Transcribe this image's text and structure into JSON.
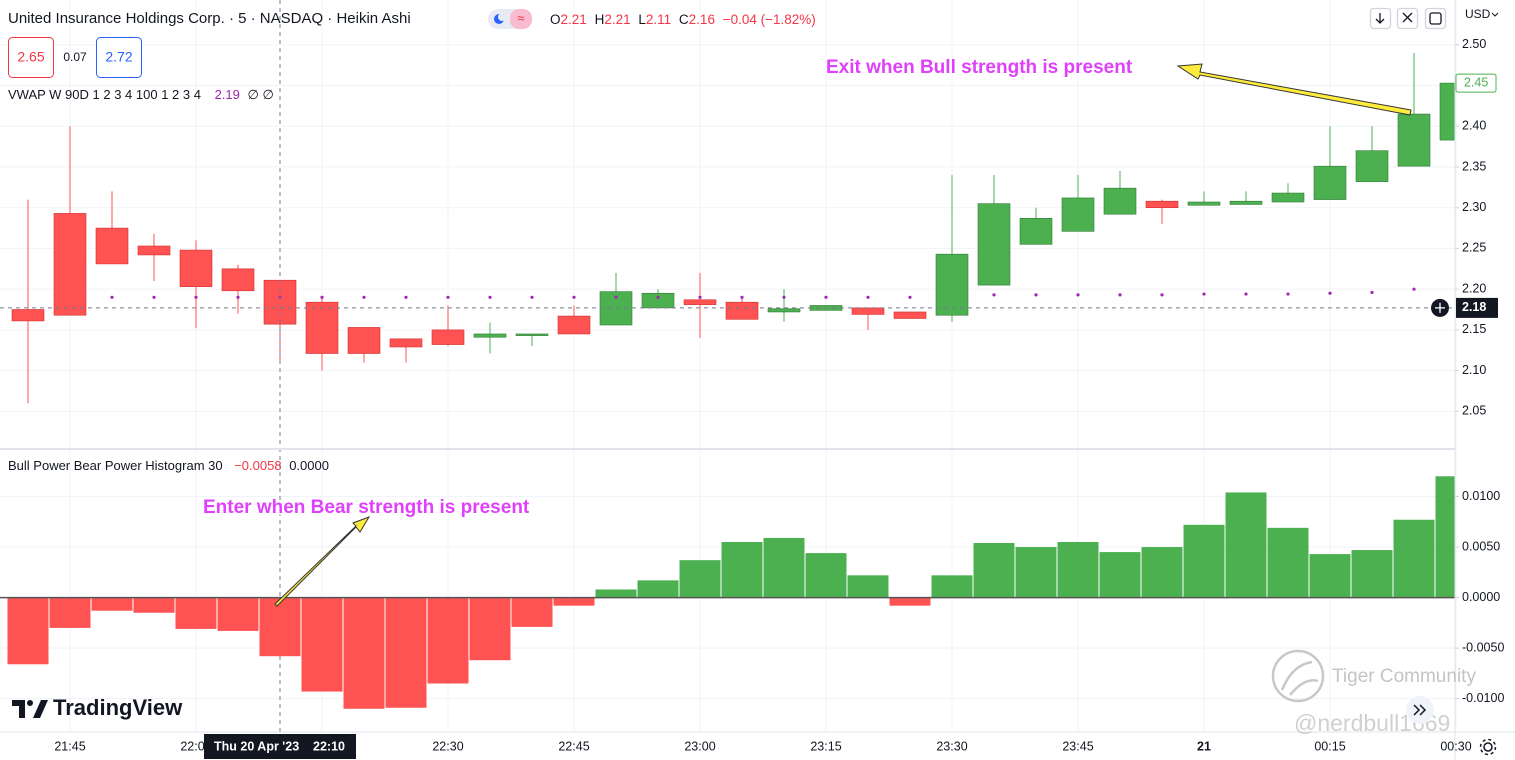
{
  "header": {
    "title": "United Insurance Holdings Corp. · 5 · NASDAQ · Heikin Ashi",
    "ohlc": [
      [
        "O",
        "2.21"
      ],
      [
        "H",
        "2.21"
      ],
      [
        "L",
        "2.11"
      ],
      [
        "C",
        "2.16"
      ]
    ],
    "change": "−0.04 (−1.82%)",
    "currency": "USD"
  },
  "buttons": [
    "2.65",
    "0.07",
    "2.72"
  ],
  "branding": {
    "logo": "TradingView",
    "watermark": "Tiger Community",
    "handle": "@nerdbull1669"
  },
  "chart_data": [
    {
      "type": "candlestick",
      "categories": [
        null,
        "21:45",
        null,
        null,
        "22:00",
        null,
        null,
        null,
        null,
        null,
        "22:30",
        null,
        null,
        "22:45",
        null,
        null,
        "23:00",
        null,
        null,
        "23:15",
        null,
        null,
        "23:30",
        null,
        null,
        "23:45",
        null,
        null,
        "21",
        null,
        null,
        "00:15",
        null,
        null,
        "00:30"
      ],
      "open": [
        2.175,
        2.293,
        2.275,
        2.253,
        2.248,
        2.225,
        2.211,
        2.184,
        2.153,
        2.139,
        2.15,
        2.141,
        2.143,
        2.167,
        2.156,
        2.177,
        2.187,
        2.184,
        2.172,
        2.174,
        2.177,
        2.172,
        2.168,
        2.205,
        2.255,
        2.271,
        2.292,
        2.308,
        2.303,
        2.304,
        2.307,
        2.31,
        2.332,
        2.351,
        2.383
      ],
      "high": [
        2.31,
        2.4,
        2.32,
        2.268,
        2.26,
        2.23,
        2.211,
        2.19,
        2.153,
        2.139,
        2.18,
        2.159,
        2.145,
        2.18,
        2.22,
        2.2,
        2.22,
        2.19,
        2.2,
        2.18,
        2.177,
        2.172,
        2.34,
        2.34,
        2.3,
        2.34,
        2.345,
        2.31,
        2.32,
        2.32,
        2.33,
        2.4,
        2.4,
        2.49,
        2.46
      ],
      "low": [
        2.06,
        2.168,
        2.231,
        2.21,
        2.152,
        2.17,
        2.11,
        2.1,
        2.11,
        2.11,
        2.13,
        2.121,
        2.13,
        2.145,
        2.156,
        2.177,
        2.14,
        2.163,
        2.16,
        2.174,
        2.15,
        2.164,
        2.16,
        2.205,
        2.255,
        2.271,
        2.292,
        2.28,
        2.303,
        2.304,
        2.307,
        2.31,
        2.332,
        2.351,
        2.383
      ],
      "close": [
        2.161,
        2.168,
        2.231,
        2.242,
        2.203,
        2.198,
        2.157,
        2.121,
        2.121,
        2.129,
        2.132,
        2.145,
        2.145,
        2.145,
        2.197,
        2.195,
        2.181,
        2.163,
        2.176,
        2.18,
        2.169,
        2.164,
        2.243,
        2.305,
        2.287,
        2.312,
        2.324,
        2.3,
        2.307,
        2.308,
        2.318,
        2.351,
        2.37,
        2.415,
        2.453
      ],
      "up_color": "#4caf50",
      "down_color": "#ff5252",
      "overlay": {
        "name": "VWAP W 90D 1 2 3 4 100 1 2 3 4",
        "legend_value": "2.19",
        "legend_extra": "∅ ∅",
        "color": "#9c27b0",
        "values": [
          null,
          null,
          2.19,
          2.19,
          2.19,
          2.19,
          2.19,
          2.19,
          2.19,
          2.19,
          2.19,
          2.19,
          2.19,
          2.19,
          2.19,
          2.19,
          2.19,
          2.19,
          2.19,
          2.19,
          2.19,
          2.19,
          null,
          2.193,
          2.193,
          2.193,
          2.193,
          2.193,
          2.194,
          2.194,
          2.194,
          2.195,
          2.196,
          2.2,
          null
        ]
      },
      "ylim": [
        2.005,
        2.555
      ],
      "yticks": [
        2.05,
        {
          "value": 2.1,
          "label": "2.10"
        },
        2.15,
        {
          "value": 2.2,
          "label": "2.20"
        },
        2.25,
        {
          "value": 2.3,
          "label": "2.30"
        },
        2.35,
        {
          "value": 2.4,
          "label": "2.40"
        },
        2.45,
        {
          "value": 2.5,
          "label": "2.50"
        }
      ],
      "grid": true,
      "last_price": {
        "value": 2.453,
        "label": "2.45"
      },
      "crosshair": {
        "value": 2.177,
        "label": "2.18",
        "date_label": "Thu 20 Apr '23",
        "time_label": "22:10"
      },
      "annotation": "Exit when Bull strength is present"
    },
    {
      "type": "bar",
      "title": "Bull Power Bear Power Histogram 30",
      "legend_values": [
        "−0.0058",
        "0.0000"
      ],
      "values": [
        -0.0066,
        -0.003,
        -0.0013,
        -0.0015,
        -0.0031,
        -0.0033,
        -0.0058,
        -0.0093,
        -0.011,
        -0.0109,
        -0.0085,
        -0.0062,
        -0.0029,
        -0.0008,
        0.0008,
        0.0017,
        0.0037,
        0.0055,
        0.0059,
        0.0044,
        0.0022,
        -0.0008,
        0.0022,
        0.0054,
        0.005,
        0.0055,
        0.0045,
        0.005,
        0.0072,
        0.0104,
        0.0069,
        0.0043,
        0.0047,
        0.0077,
        0.012
      ],
      "up_color": "#4caf50",
      "down_color": "#ff5252",
      "ylim": [
        -0.0133,
        0.0146
      ],
      "yticks": [
        {
          "value": -0.01,
          "label": "-0.0100"
        },
        {
          "value": -0.005,
          "label": "-0.0050"
        },
        {
          "value": 0,
          "label": "0.0000"
        },
        {
          "value": 0.005,
          "label": "0.0050"
        },
        {
          "value": 0.01,
          "label": "0.0100"
        }
      ],
      "grid": true,
      "annotation": "Enter when Bear strength is present"
    }
  ]
}
